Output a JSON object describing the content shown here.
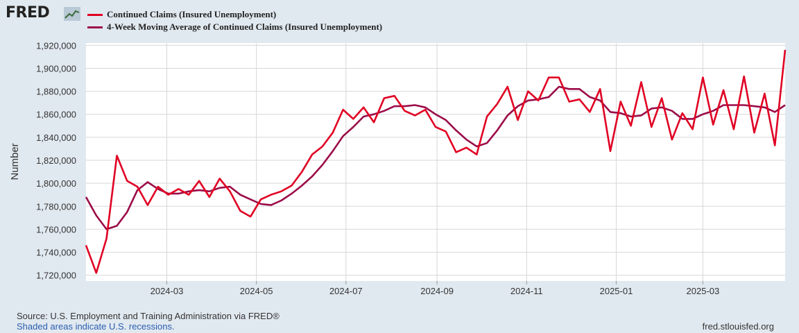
{
  "brand": {
    "logo_text": "FRED",
    "logo_icon": "chart-line-icon"
  },
  "colors": {
    "series1": "#e00023",
    "series2": "#9b0b48",
    "plot_bg": "#ffffff",
    "page_bg": "#e1e9f0",
    "grid": "#d7d7d7"
  },
  "chart_data": {
    "type": "line",
    "ylabel": "Number",
    "ylim": [
      1715000,
      1922000
    ],
    "yticks": [
      1720000,
      1740000,
      1760000,
      1780000,
      1800000,
      1820000,
      1840000,
      1860000,
      1880000,
      1900000,
      1920000
    ],
    "ytick_labels": [
      "1,720,000",
      "1,740,000",
      "1,760,000",
      "1,780,000",
      "1,800,000",
      "1,820,000",
      "1,840,000",
      "1,860,000",
      "1,880,000",
      "1,900,000",
      "1,920,000"
    ],
    "xlim": [
      "2024-01-06",
      "2025-04-26"
    ],
    "xticks": [
      "2024-03-01",
      "2024-05-01",
      "2024-07-01",
      "2024-09-01",
      "2024-11-01",
      "2025-01-01",
      "2025-03-01"
    ],
    "xtick_labels": [
      "2024-03",
      "2024-05",
      "2024-07",
      "2024-09",
      "2024-11",
      "2025-01",
      "2025-03"
    ],
    "grid": true,
    "legend_position": "top-left",
    "x": [
      "2024-01-06",
      "2024-01-13",
      "2024-01-20",
      "2024-01-27",
      "2024-02-03",
      "2024-02-10",
      "2024-02-17",
      "2024-02-24",
      "2024-03-02",
      "2024-03-09",
      "2024-03-16",
      "2024-03-23",
      "2024-03-30",
      "2024-04-06",
      "2024-04-13",
      "2024-04-20",
      "2024-04-27",
      "2024-05-04",
      "2024-05-11",
      "2024-05-18",
      "2024-05-25",
      "2024-06-01",
      "2024-06-08",
      "2024-06-15",
      "2024-06-22",
      "2024-06-29",
      "2024-07-06",
      "2024-07-13",
      "2024-07-20",
      "2024-07-27",
      "2024-08-03",
      "2024-08-10",
      "2024-08-17",
      "2024-08-24",
      "2024-08-31",
      "2024-09-07",
      "2024-09-14",
      "2024-09-21",
      "2024-09-28",
      "2024-10-05",
      "2024-10-12",
      "2024-10-19",
      "2024-10-26",
      "2024-11-02",
      "2024-11-09",
      "2024-11-16",
      "2024-11-23",
      "2024-11-30",
      "2024-12-07",
      "2024-12-14",
      "2024-12-21",
      "2024-12-28",
      "2025-01-04",
      "2025-01-11",
      "2025-01-18",
      "2025-01-25",
      "2025-02-01",
      "2025-02-08",
      "2025-02-15",
      "2025-02-22",
      "2025-03-01",
      "2025-03-08",
      "2025-03-15",
      "2025-03-22",
      "2025-03-29",
      "2025-04-05",
      "2025-04-12",
      "2025-04-19",
      "2025-04-26"
    ],
    "series": [
      {
        "name": "Continued Claims (Insured Unemployment)",
        "color": "#e00023",
        "values": [
          1746000,
          1722000,
          1752000,
          1824000,
          1802000,
          1797000,
          1781000,
          1797000,
          1790000,
          1795000,
          1790000,
          1802000,
          1788000,
          1804000,
          1793000,
          1776000,
          1771000,
          1786000,
          1790000,
          1793000,
          1798000,
          1810000,
          1825000,
          1832000,
          1844000,
          1864000,
          1856000,
          1866000,
          1853000,
          1874000,
          1876000,
          1863000,
          1859000,
          1864000,
          1849000,
          1845000,
          1827000,
          1831000,
          1825000,
          1858000,
          1869000,
          1884000,
          1855000,
          1880000,
          1872000,
          1892000,
          1892000,
          1871000,
          1873000,
          1862000,
          1882000,
          1828000,
          1871000,
          1850000,
          1888000,
          1849000,
          1874000,
          1838000,
          1861000,
          1847000,
          1892000,
          1851000,
          1881000,
          1847000,
          1893000,
          1844000,
          1878000,
          1833000,
          1916000
        ]
      },
      {
        "name": "4-Week Moving Average of Continued Claims (Insured Unemployment)",
        "color": "#9b0b48",
        "values": [
          1788000,
          1772000,
          1760000,
          1763000,
          1775000,
          1794000,
          1801000,
          1795000,
          1791000,
          1791000,
          1793000,
          1794000,
          1793000,
          1796000,
          1797000,
          1790000,
          1786000,
          1782000,
          1781000,
          1785000,
          1791000,
          1798000,
          1806000,
          1816000,
          1828000,
          1841000,
          1849000,
          1858000,
          1860000,
          1863000,
          1867000,
          1867000,
          1868000,
          1866000,
          1860000,
          1855000,
          1846000,
          1838000,
          1832000,
          1835000,
          1846000,
          1859000,
          1867000,
          1872000,
          1873000,
          1875000,
          1884000,
          1882000,
          1882000,
          1875000,
          1872000,
          1862000,
          1861000,
          1858000,
          1859000,
          1865000,
          1866000,
          1863000,
          1856000,
          1856000,
          1860000,
          1863000,
          1868000,
          1868000,
          1868000,
          1867000,
          1866000,
          1862000,
          1868000
        ]
      }
    ]
  },
  "footer": {
    "source": "Source: U.S. Employment and Training Administration via FRED®",
    "recession_note": "Shaded areas indicate U.S. recessions.",
    "site": "fred.stlouisfed.org"
  }
}
